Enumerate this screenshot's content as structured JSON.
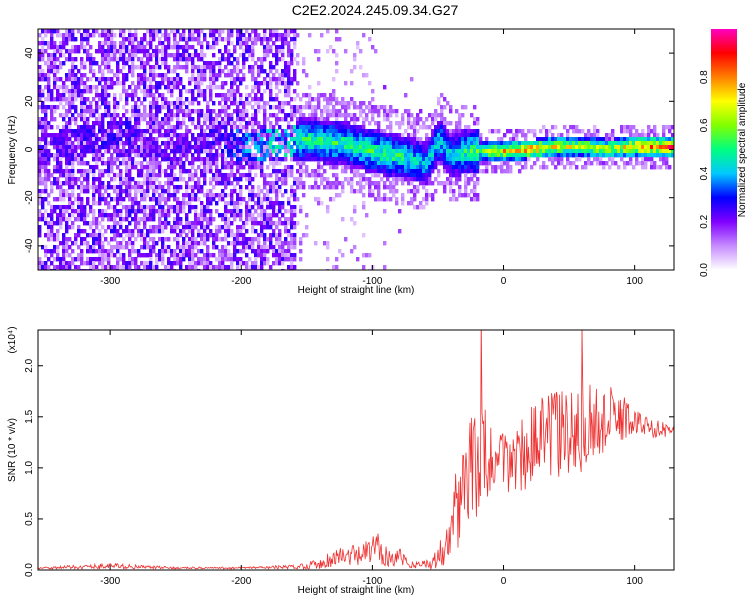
{
  "title": "C2E2.2024.245.09.34.G27",
  "chart_data": [
    {
      "type": "heatmap",
      "xlabel": "Height of straight line (km)",
      "ylabel": "Frequency (Hz)",
      "xlim": [
        -355,
        130
      ],
      "ylim": [
        -50,
        50
      ],
      "xticks": [
        -300,
        -200,
        -100,
        0,
        100
      ],
      "yticks": [
        -40,
        -20,
        0,
        20,
        40
      ],
      "xtick_labels": [
        "-300",
        "-200",
        "-100",
        "0",
        "100"
      ],
      "ytick_labels": [
        "-40",
        "-20",
        "0",
        "20",
        "40"
      ],
      "colorbar": {
        "label": "Normalized spectral amplitude",
        "range": [
          0,
          1
        ],
        "ticks": [
          0.0,
          0.2,
          0.4,
          0.6,
          0.8
        ],
        "tick_labels": [
          "0.0",
          "0.2",
          "0.4",
          "0.6",
          "0.8"
        ],
        "colors": [
          "#ffffff",
          "#c78cff",
          "#8000ff",
          "#0000ff",
          "#00c8ff",
          "#00ff80",
          "#80ff00",
          "#ffff00",
          "#ff8000",
          "#ff0000",
          "#ff00c0"
        ]
      },
      "signal_trace": {
        "x": [
          -355,
          -300,
          -250,
          -215,
          -200,
          -180,
          -150,
          -120,
          -100,
          -80,
          -60,
          -50,
          -40,
          -30,
          -20,
          0,
          20,
          40,
          60,
          80,
          100,
          130
        ],
        "freq": [
          0,
          8,
          0,
          5,
          2,
          3,
          5,
          3,
          0,
          -2,
          -5,
          5,
          -2,
          0,
          0,
          0,
          1,
          2,
          2,
          1,
          2,
          2
        ],
        "amplitude": [
          0.25,
          0.3,
          0.25,
          0.3,
          0.4,
          0.5,
          0.55,
          0.55,
          0.55,
          0.55,
          0.45,
          0.5,
          0.45,
          0.55,
          0.6,
          0.8,
          0.85,
          0.75,
          0.7,
          0.7,
          0.85,
          0.9
        ]
      }
    },
    {
      "type": "line",
      "xlabel": "Height of straight line (km)",
      "ylabel": "SNR (10 * v/v)",
      "y_multiplier": "(x10⁴)",
      "xlim": [
        -355,
        130
      ],
      "ylim": [
        0,
        2.35
      ],
      "xticks": [
        -300,
        -200,
        -100,
        0,
        100
      ],
      "yticks": [
        0.0,
        0.5,
        1.0,
        1.5,
        2.0
      ],
      "xtick_labels": [
        "-300",
        "-200",
        "-100",
        "0",
        "100"
      ],
      "ytick_labels": [
        "0.0",
        "0.5",
        "1.0",
        "1.5",
        "2.0"
      ],
      "color": "#ee3030",
      "series": [
        {
          "x": [
            -355,
            -320,
            -300,
            -280,
            -250,
            -200,
            -160,
            -140,
            -130,
            -120,
            -110,
            -100,
            -95,
            -90,
            -85,
            -80,
            -75,
            -70,
            -60,
            -50,
            -45,
            -40,
            -35,
            -30,
            -25,
            -20,
            -15,
            -10,
            -5,
            0,
            10,
            20,
            30,
            40,
            50,
            60,
            70,
            80,
            90,
            100,
            110,
            120,
            130
          ],
          "y": [
            0.02,
            0.03,
            0.04,
            0.03,
            0.02,
            0.02,
            0.03,
            0.06,
            0.12,
            0.14,
            0.13,
            0.2,
            0.22,
            0.15,
            0.12,
            0.15,
            0.08,
            0.05,
            0.06,
            0.1,
            0.3,
            0.5,
            0.65,
            0.8,
            1.0,
            1.05,
            1.1,
            1.05,
            1.0,
            1.05,
            1.1,
            1.2,
            1.3,
            1.35,
            1.3,
            1.4,
            1.45,
            1.45,
            1.5,
            1.45,
            1.4,
            1.38,
            1.35
          ],
          "spread": [
            0.01,
            0.02,
            0.03,
            0.02,
            0.01,
            0.01,
            0.02,
            0.05,
            0.1,
            0.12,
            0.1,
            0.15,
            0.15,
            0.12,
            0.1,
            0.1,
            0.05,
            0.03,
            0.05,
            0.1,
            0.25,
            0.4,
            0.45,
            0.5,
            0.5,
            0.55,
            0.5,
            0.4,
            0.35,
            0.35,
            0.35,
            0.4,
            0.4,
            0.45,
            0.45,
            0.45,
            0.4,
            0.35,
            0.25,
            0.15,
            0.1,
            0.08,
            0.05
          ]
        }
      ]
    }
  ]
}
